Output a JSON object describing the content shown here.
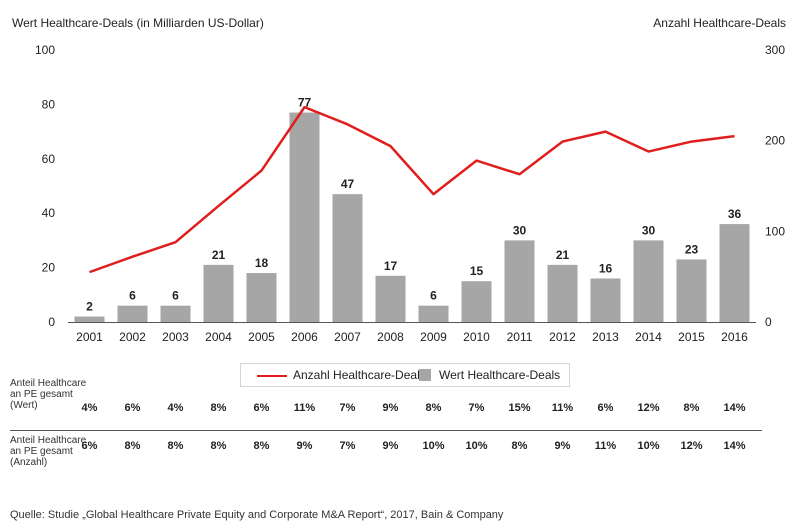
{
  "chart_data": {
    "type": "bar",
    "left_axis_title": "Wert Healthcare-Deals (in Milliarden US-Dollar)",
    "right_axis_title": "Anzahl Healthcare-Deals",
    "categories": [
      "2001",
      "2002",
      "2003",
      "2004",
      "2005",
      "2006",
      "2007",
      "2008",
      "2009",
      "2010",
      "2011",
      "2012",
      "2013",
      "2014",
      "2015",
      "2016"
    ],
    "series": [
      {
        "name": "Wert Healthcare-Deals",
        "type": "bar",
        "axis": "left",
        "values": [
          2,
          6,
          6,
          21,
          18,
          77,
          47,
          17,
          6,
          15,
          30,
          21,
          16,
          30,
          23,
          36
        ],
        "color": "#a6a6a6"
      },
      {
        "name": "Anzahl Healthcare-Deals",
        "type": "line",
        "axis": "right",
        "values": [
          55,
          72,
          88,
          128,
          167,
          237,
          218,
          194,
          141,
          178,
          163,
          199,
          210,
          188,
          199,
          205
        ],
        "color": "#e01e1e"
      }
    ],
    "ylim_left": [
      0,
      100
    ],
    "yticks_left": [
      0,
      20,
      40,
      60,
      80,
      100
    ],
    "ylim_right": [
      0,
      300
    ],
    "yticks_right": [
      0,
      100,
      200,
      300
    ],
    "grid": false,
    "legend_position": "bottom-center"
  },
  "share_rows": [
    {
      "label": "Anteil Healthcare an PE gesamt (Wert)",
      "values": [
        "4%",
        "6%",
        "4%",
        "8%",
        "6%",
        "11%",
        "7%",
        "9%",
        "8%",
        "7%",
        "15%",
        "11%",
        "6%",
        "12%",
        "8%",
        "14%"
      ]
    },
    {
      "label": "Anteil Healthcare an PE gesamt (Anzahl)",
      "values": [
        "6%",
        "8%",
        "8%",
        "8%",
        "8%",
        "9%",
        "7%",
        "9%",
        "10%",
        "10%",
        "8%",
        "9%",
        "11%",
        "10%",
        "12%",
        "14%"
      ]
    }
  ],
  "source": "Quelle: Studie „Global Healthcare Private Equity and Corporate M&A Report“, 2017, Bain & Company"
}
